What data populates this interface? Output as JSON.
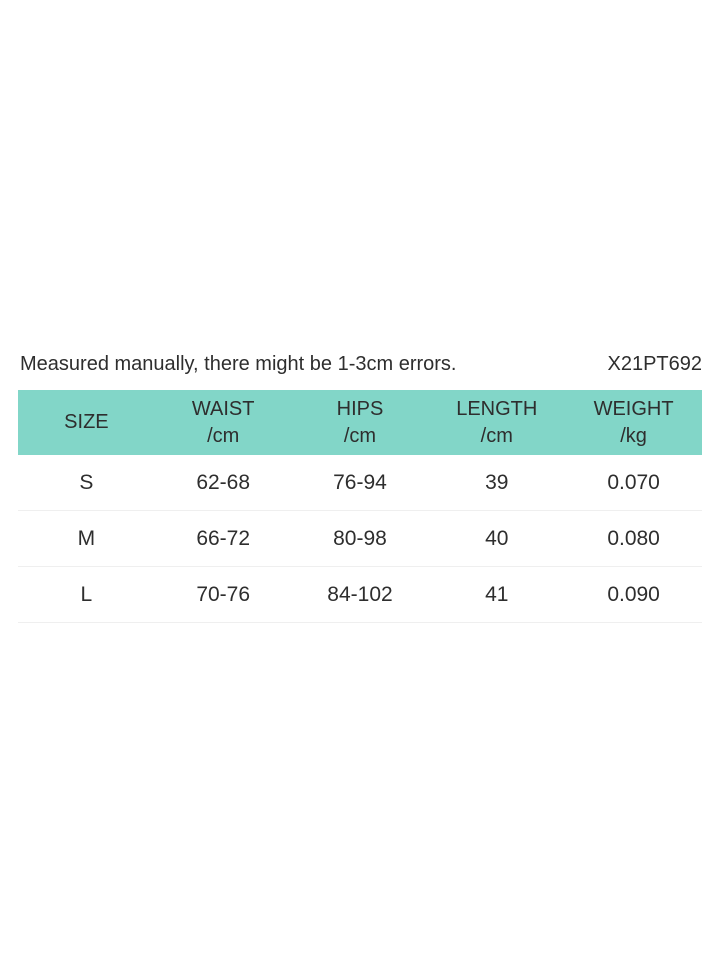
{
  "page": {
    "note": "Measured manually, there might be 1-3cm errors.",
    "product_code": "X21PT692"
  },
  "colors": {
    "header_bg": "#82d6c8",
    "text": "#2e2e2e",
    "row_divider": "#efefef",
    "background": "#ffffff"
  },
  "chart_data": {
    "type": "table",
    "title": "",
    "columns": [
      {
        "label": "SIZE",
        "unit": ""
      },
      {
        "label": "WAIST",
        "unit": "/cm"
      },
      {
        "label": "HIPS",
        "unit": "/cm"
      },
      {
        "label": "LENGTH",
        "unit": "/cm"
      },
      {
        "label": "WEIGHT",
        "unit": "/kg"
      }
    ],
    "rows": [
      [
        "S",
        "62-68",
        "76-94",
        "39",
        "0.070"
      ],
      [
        "M",
        "66-72",
        "80-98",
        "40",
        "0.080"
      ],
      [
        "L",
        "70-76",
        "84-102",
        "41",
        "0.090"
      ]
    ]
  }
}
